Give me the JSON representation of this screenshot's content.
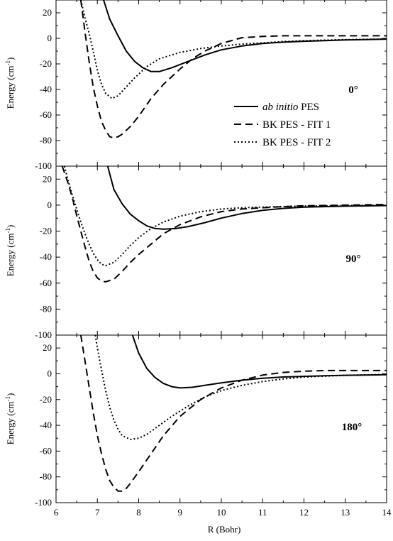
{
  "chart_data": [
    {
      "type": "line",
      "panel_label": "0°",
      "ylabel": "Energy (cm-1)",
      "xlim": [
        6,
        14
      ],
      "ylim": [
        -100,
        30
      ],
      "yticks": [
        20,
        0,
        -20,
        -40,
        -60,
        -80,
        -100
      ],
      "legend": {
        "placement": "center-right",
        "entries": [
          {
            "prefix": "ab initio",
            "suffix": " PES",
            "style": "solid"
          },
          {
            "prefix": "",
            "suffix": "BK PES - FIT 1",
            "style": "dashed"
          },
          {
            "prefix": "",
            "suffix": "BK PES - FIT 2",
            "style": "dotted"
          }
        ]
      },
      "series": [
        {
          "name": "ab initio PES",
          "style": "solid",
          "x": [
            7.15,
            7.3,
            7.5,
            7.7,
            7.9,
            8.1,
            8.3,
            8.5,
            8.8,
            9.2,
            9.6,
            10,
            10.5,
            11,
            11.5,
            12,
            12.5,
            13,
            13.5,
            14
          ],
          "y": [
            30,
            15,
            2,
            -10,
            -18,
            -23,
            -26,
            -26,
            -23,
            -18,
            -13,
            -9,
            -6,
            -4,
            -3,
            -2.3,
            -1.8,
            -1.3,
            -1,
            -0.6
          ]
        },
        {
          "name": "BK PES - FIT 1",
          "style": "dashed",
          "x": [
            6.6,
            6.7,
            6.8,
            6.9,
            7.0,
            7.1,
            7.2,
            7.3,
            7.4,
            7.5,
            7.6,
            7.8,
            8.0,
            8.3,
            8.6,
            9.0,
            9.3,
            9.6,
            10,
            10.5,
            11,
            11.5,
            12,
            13,
            14
          ],
          "y": [
            30,
            5,
            -18,
            -38,
            -53,
            -65,
            -72,
            -77,
            -78,
            -77,
            -75,
            -69,
            -61,
            -47,
            -36,
            -24,
            -16,
            -10,
            -4,
            0.5,
            1.5,
            2,
            2,
            2,
            2
          ]
        },
        {
          "name": "BK PES - FIT 2",
          "style": "dotted",
          "x": [
            6.6,
            6.7,
            6.8,
            6.9,
            7.0,
            7.1,
            7.2,
            7.35,
            7.5,
            7.7,
            7.9,
            8.2,
            8.5,
            9.0,
            9.5,
            10,
            10.5,
            11,
            11.5,
            12,
            13,
            14
          ],
          "y": [
            30,
            16,
            4,
            -10,
            -25,
            -36,
            -43,
            -47,
            -45,
            -38,
            -31,
            -22,
            -16,
            -11,
            -8,
            -6,
            -4.5,
            -3.5,
            -2.5,
            -1.8,
            -1,
            -0.5
          ]
        }
      ]
    },
    {
      "type": "line",
      "panel_label": "90°",
      "ylabel": "Energy (cm-1)",
      "xlim": [
        6,
        14
      ],
      "ylim": [
        -100,
        30
      ],
      "yticks": [
        20,
        0,
        -20,
        -40,
        -60,
        -80,
        -100
      ],
      "series": [
        {
          "name": "ab initio PES",
          "style": "solid",
          "x": [
            7.25,
            7.4,
            7.6,
            7.8,
            8.0,
            8.2,
            8.4,
            8.6,
            8.9,
            9.2,
            9.6,
            10,
            10.5,
            11,
            11.5,
            12,
            13,
            14
          ],
          "y": [
            30,
            12,
            1,
            -7,
            -12,
            -16,
            -18,
            -18.5,
            -18,
            -16.5,
            -13.5,
            -10,
            -6.5,
            -4,
            -2.5,
            -1.5,
            -0.8,
            -0.3
          ]
        },
        {
          "name": "BK PES - FIT 1",
          "style": "dashed",
          "x": [
            6.15,
            6.3,
            6.4,
            6.5,
            6.6,
            6.7,
            6.8,
            6.9,
            7.0,
            7.1,
            7.2,
            7.4,
            7.6,
            7.8,
            8.0,
            8.3,
            8.6,
            9.0,
            9.5,
            10,
            10.5,
            11,
            11.5,
            12,
            13,
            14
          ],
          "y": [
            30,
            16,
            5,
            -8,
            -20,
            -32,
            -43,
            -51,
            -56,
            -58.5,
            -59,
            -57,
            -51,
            -44,
            -38,
            -30,
            -22,
            -15,
            -9,
            -5,
            -3,
            -2,
            -1.2,
            -0.5,
            0,
            0.5
          ]
        },
        {
          "name": "BK PES - FIT 2",
          "style": "dotted",
          "x": [
            6.2,
            6.3,
            6.4,
            6.5,
            6.6,
            6.7,
            6.8,
            6.9,
            7.0,
            7.1,
            7.2,
            7.4,
            7.6,
            7.8,
            8.0,
            8.3,
            8.6,
            9.0,
            9.5,
            10,
            10.5,
            11,
            12,
            13,
            14
          ],
          "y": [
            30,
            18,
            7,
            -3,
            -13,
            -22,
            -30,
            -37,
            -42,
            -45.5,
            -46.5,
            -44,
            -38,
            -31,
            -25,
            -18,
            -13,
            -8.5,
            -5,
            -3,
            -2,
            -1.5,
            -0.7,
            -0.3,
            0
          ]
        }
      ]
    },
    {
      "type": "line",
      "panel_label": "180°",
      "ylabel": "Energy (cm-1)",
      "xlabel": "R  (Bohr)",
      "xlim": [
        6,
        14
      ],
      "ylim": [
        -100,
        30
      ],
      "xticks": [
        6,
        7,
        8,
        9,
        10,
        11,
        12,
        13,
        14
      ],
      "yticks": [
        20,
        0,
        -20,
        -40,
        -60,
        -80,
        -100
      ],
      "series": [
        {
          "name": "ab initio PES",
          "style": "solid",
          "x": [
            7.85,
            8.0,
            8.2,
            8.4,
            8.6,
            8.8,
            9.0,
            9.3,
            9.6,
            10,
            10.5,
            11,
            11.5,
            12,
            12.5,
            13,
            13.5,
            14
          ],
          "y": [
            30,
            16,
            4,
            -3,
            -7.5,
            -10,
            -11,
            -10.5,
            -9,
            -7,
            -5,
            -3.5,
            -2.5,
            -2,
            -1.5,
            -1.2,
            -1,
            -0.7
          ]
        },
        {
          "name": "BK PES - FIT 1",
          "style": "dashed",
          "x": [
            6.6,
            6.7,
            6.8,
            6.9,
            7.0,
            7.1,
            7.2,
            7.3,
            7.4,
            7.5,
            7.6,
            7.7,
            7.8,
            8.0,
            8.3,
            8.6,
            9.0,
            9.5,
            10,
            10.5,
            11,
            11.5,
            12,
            12.5,
            13,
            14
          ],
          "y": [
            30,
            10,
            -10,
            -30,
            -48,
            -62,
            -74,
            -83,
            -88,
            -91,
            -91,
            -89,
            -85,
            -76,
            -62,
            -48,
            -33,
            -20,
            -11,
            -5,
            -1,
            1,
            2,
            2.5,
            2.5,
            2.5
          ]
        },
        {
          "name": "BK PES - FIT 2",
          "style": "dotted",
          "x": [
            6.95,
            7.0,
            7.1,
            7.2,
            7.3,
            7.4,
            7.5,
            7.6,
            7.8,
            8.0,
            8.2,
            8.5,
            8.8,
            9.2,
            9.6,
            10,
            10.5,
            11,
            11.5,
            12,
            13,
            14
          ],
          "y": [
            30,
            20,
            3,
            -13,
            -26,
            -36,
            -43,
            -48,
            -51,
            -50,
            -47,
            -40,
            -33,
            -25,
            -18,
            -13,
            -9,
            -6,
            -4,
            -2.5,
            -1.2,
            -0.5
          ]
        }
      ]
    }
  ]
}
